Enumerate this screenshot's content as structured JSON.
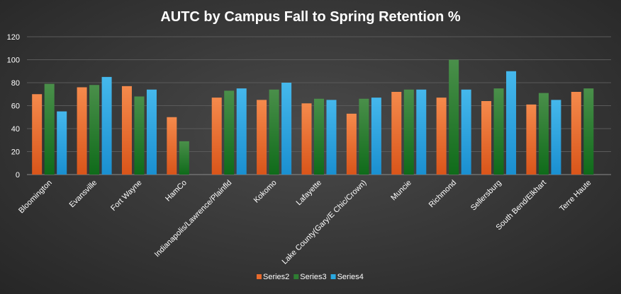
{
  "chart_data": {
    "type": "bar",
    "title": "AUTC by Campus Fall to Spring Retention %",
    "xlabel": "",
    "ylabel": "",
    "ylim": [
      0,
      120
    ],
    "yticks": [
      0,
      20,
      40,
      60,
      80,
      100,
      120
    ],
    "grid": true,
    "legend_position": "bottom",
    "categories": [
      "Bloomington",
      "Evansville",
      "Fort Wayne",
      "HamCo",
      "Indianapolis/Lawrence/Plainfld",
      "Kokomo",
      "Lafayette",
      "Lake County(Gary/E Chic/Crown)",
      "Muncie",
      "Richmond",
      "Sellersburg",
      "South Bend/Elkhart",
      "Terre Haute"
    ],
    "series": [
      {
        "name": "Series2",
        "color": "#e86a2c",
        "values": [
          70,
          76,
          77,
          50,
          67,
          65,
          62,
          53,
          72,
          67,
          64,
          61,
          72
        ]
      },
      {
        "name": "Series3",
        "color": "#2e7d32",
        "values": [
          79,
          78,
          68,
          29,
          73,
          74,
          66,
          66,
          74,
          100,
          75,
          71,
          75
        ]
      },
      {
        "name": "Series4",
        "color": "#29a8e0",
        "values": [
          55,
          85,
          74,
          null,
          75,
          80,
          65,
          67,
          74,
          74,
          90,
          65,
          null
        ]
      }
    ]
  }
}
